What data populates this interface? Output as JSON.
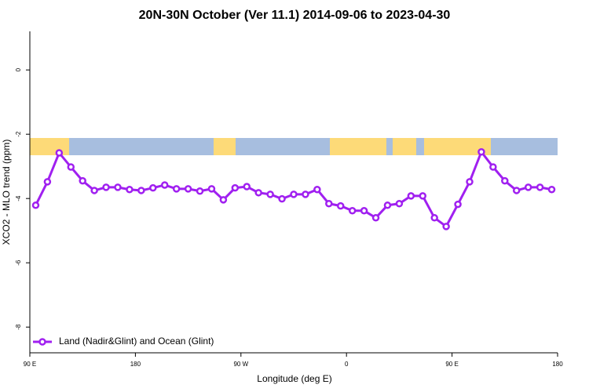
{
  "chart_data": {
    "type": "line",
    "title": "20N-30N October (Ver 11.1)   2014-09-06 to 2023-04-30",
    "x_label": "Longitude (deg E)",
    "y_label": "XCO2 - MLO trend (ppm)",
    "x": [
      95,
      105,
      115,
      125,
      135,
      145,
      155,
      165,
      175,
      185,
      195,
      205,
      215,
      225,
      235,
      245,
      255,
      265,
      275,
      285,
      295,
      305,
      315,
      325,
      335,
      345,
      355,
      365,
      375,
      385,
      395,
      405,
      415,
      425,
      435,
      445,
      455,
      465,
      475,
      485,
      495,
      505,
      515,
      525,
      535
    ],
    "series": [
      {
        "name": "Land (Nadir&Glint) and Ocean (Glint)",
        "color": "#a020f0",
        "values": [
          -4.21,
          -3.48,
          -2.58,
          -3.02,
          -3.45,
          -3.75,
          -3.65,
          -3.65,
          -3.72,
          -3.75,
          -3.67,
          -3.58,
          -3.7,
          -3.7,
          -3.77,
          -3.7,
          -4.04,
          -3.67,
          -3.63,
          -3.82,
          -3.87,
          -4.01,
          -3.87,
          -3.87,
          -3.72,
          -4.16,
          -4.23,
          -4.38,
          -4.38,
          -4.6,
          -4.21,
          -4.16,
          -3.92,
          -3.92,
          -4.6,
          -4.87,
          -4.18,
          -3.48,
          -2.55,
          -3.02,
          -3.45,
          -3.75,
          -3.65,
          -3.65,
          -3.72
        ]
      }
    ],
    "xlim": [
      90,
      540
    ],
    "xticks": [
      {
        "value": 90,
        "label": "90 E"
      },
      {
        "value": 180,
        "label": "180"
      },
      {
        "value": 270,
        "label": "90 W"
      },
      {
        "value": 360,
        "label": "0"
      },
      {
        "value": 450,
        "label": "90 E"
      },
      {
        "value": 540,
        "label": "180"
      }
    ],
    "ylim": [
      -8.8,
      1.2
    ],
    "yticks": [
      0,
      -2,
      -4,
      -6,
      -8
    ],
    "legend": "bottom-left"
  }
}
